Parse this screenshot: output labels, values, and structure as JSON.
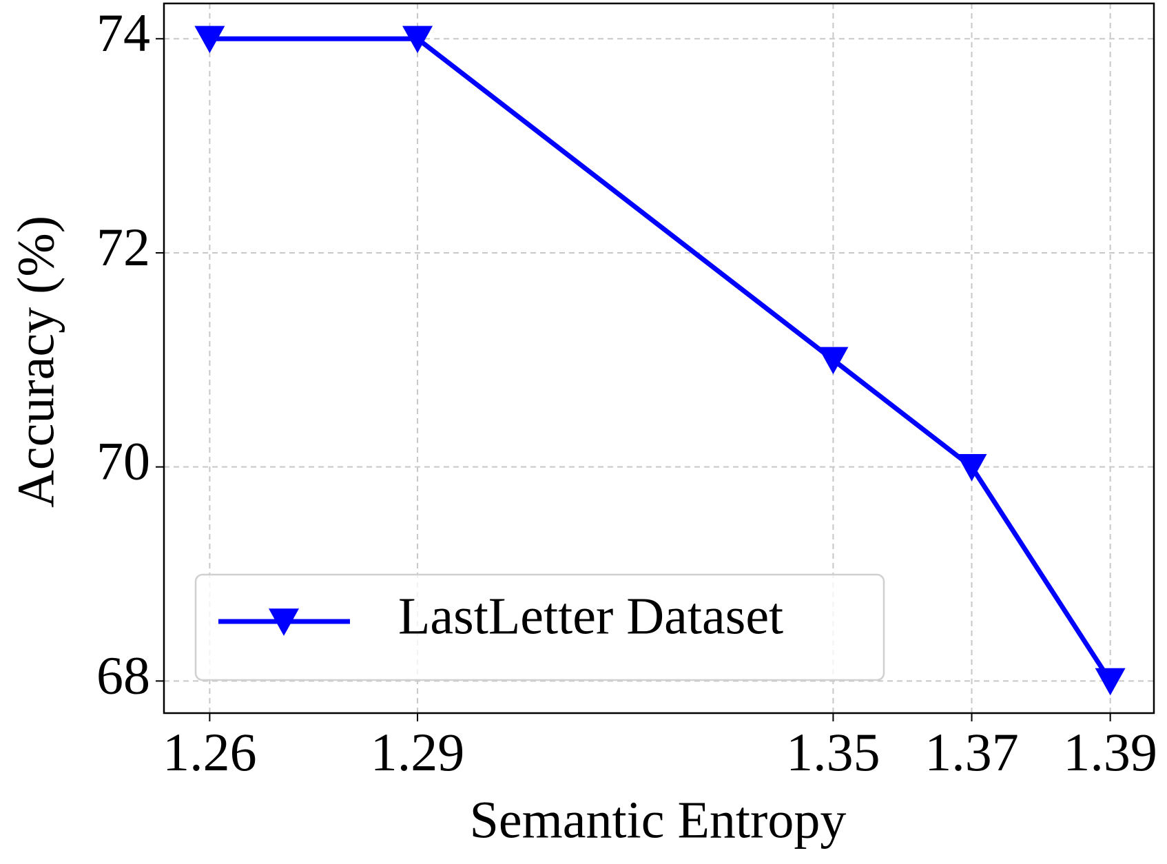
{
  "chart_data": {
    "type": "line",
    "x_label": "Semantic Entropy",
    "y_label": "Accuracy (%)",
    "x": [
      1.26,
      1.29,
      1.35,
      1.37,
      1.39
    ],
    "series": [
      {
        "name": "LastLetter Dataset",
        "color": "#0000ff",
        "marker": "triangle-down",
        "values": [
          74,
          74,
          71,
          70,
          68
        ]
      }
    ],
    "xlim": [
      1.2534,
      1.3963
    ],
    "xticks": [
      1.26,
      1.29,
      1.35,
      1.37,
      1.39
    ],
    "ylim": [
      67.7,
      74.33
    ],
    "yticks": [
      68,
      70,
      72,
      74
    ],
    "grid": true,
    "legend": "lower left"
  }
}
